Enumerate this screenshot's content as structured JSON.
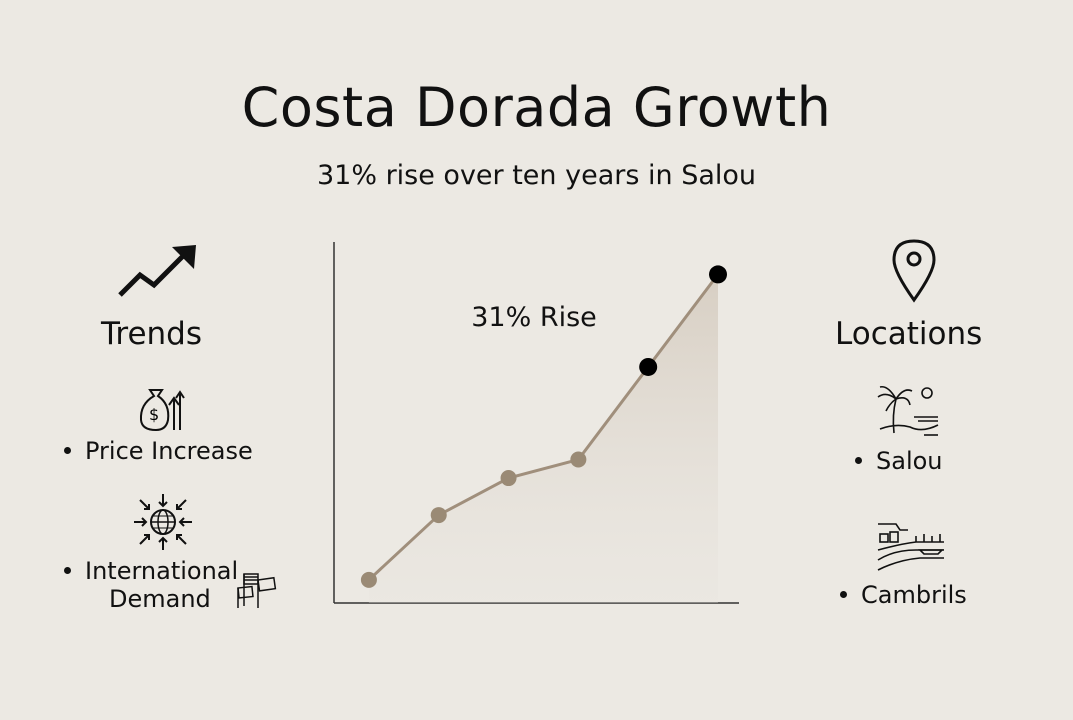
{
  "title": "Costa Dorada Growth",
  "subtitle": "31% rise over ten years in Salou",
  "left_panel": {
    "heading": "Trends",
    "items": [
      {
        "label": "Price Increase",
        "icon": "money-bag-arrow-icon"
      },
      {
        "label_line1": "International",
        "label_line2": "Demand",
        "icon": "globe-arrows-icon",
        "extra_icon": "flags-icon"
      }
    ],
    "heading_icon": "trend-up-arrow-icon"
  },
  "right_panel": {
    "heading": "Locations",
    "heading_icon": "map-pin-icon",
    "items": [
      {
        "label": "Salou",
        "icon": "beach-palm-icon"
      },
      {
        "label": "Cambrils",
        "icon": "harbor-town-icon"
      }
    ]
  },
  "chart_data": {
    "type": "line",
    "title": "",
    "xlabel": "",
    "ylabel": "",
    "annotation": "31% Rise",
    "grid": false,
    "x": [
      1,
      2,
      3,
      4,
      5,
      6
    ],
    "y": [
      0,
      14,
      22,
      26,
      46,
      66
    ],
    "highlight_points": [
      4,
      5
    ],
    "xlim": [
      0.5,
      6
    ],
    "ylim": [
      -5,
      73
    ],
    "colors": {
      "line": "#a08f7c",
      "point": "#9a8a75",
      "highlight": "#000000",
      "area": "#d8d0c5",
      "axis": "#333333"
    }
  }
}
